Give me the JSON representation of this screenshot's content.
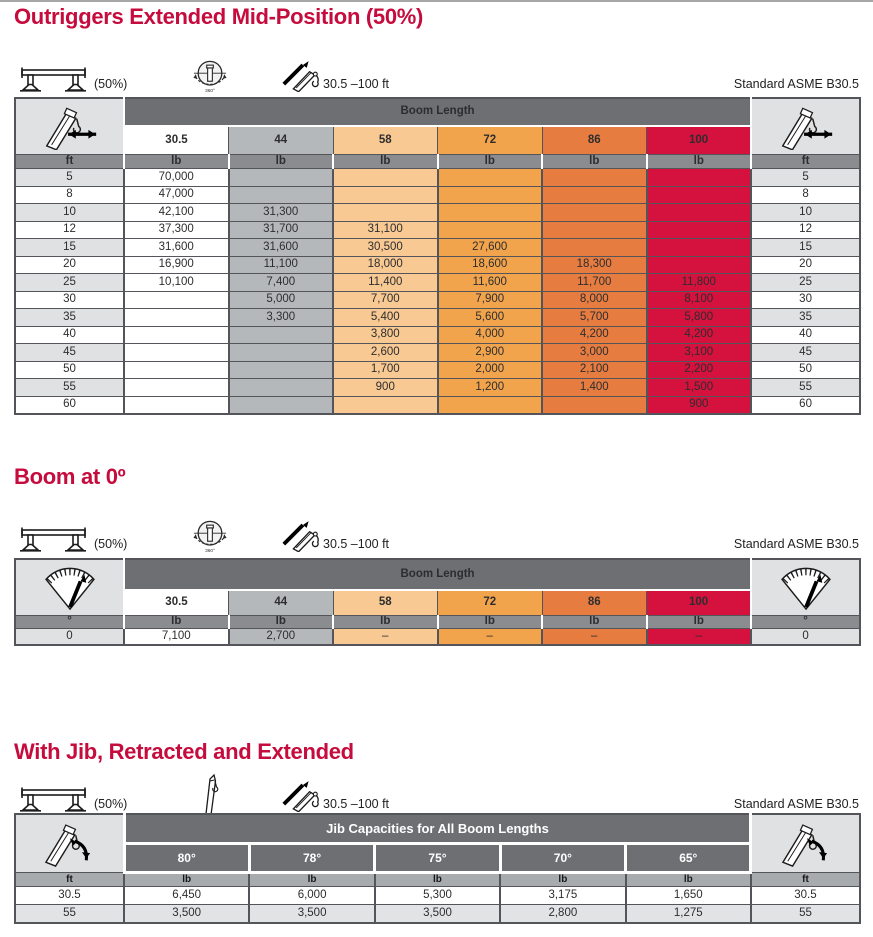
{
  "page": {
    "standard_label": "Standard ASME B30.5"
  },
  "colors": {
    "title_crimson": "#c60b3d",
    "banner_gray": "#6d6f72",
    "unit_bar_gray": "#8a8c8f",
    "corner_light_gray": "#e0e1e3",
    "column_44_gray": "#b5b8ba",
    "column_58_orange": "#f8c992",
    "column_72_orange": "#f2a44c",
    "column_86_orange": "#e77c40",
    "column_100_red": "#d5113d",
    "jib_unit_gray": "#a8abae",
    "jib_alt_row": "#e2e3e5"
  },
  "sections": [
    {
      "title": "Outriggers Extended Mid-Position (50%)",
      "icon_row": {
        "outrigger_label": "(50%)",
        "boom_range_label": "30.5 –100 ft",
        "standard_label": "Standard ASME B30.5"
      },
      "table": {
        "banner": "Boom Length",
        "left_unit": "ft",
        "right_unit": "ft",
        "data_unit": "lb",
        "columns": [
          "30.5",
          "44",
          "58",
          "72",
          "86",
          "100"
        ],
        "rows": [
          {
            "label": "5",
            "values": [
              "70,000",
              "",
              "",
              "",
              "",
              ""
            ]
          },
          {
            "label": "8",
            "values": [
              "47,000",
              "",
              "",
              "",
              "",
              ""
            ]
          },
          {
            "label": "10",
            "values": [
              "42,100",
              "31,300",
              "",
              "",
              "",
              ""
            ]
          },
          {
            "label": "12",
            "values": [
              "37,300",
              "31,700",
              "31,100",
              "",
              "",
              ""
            ]
          },
          {
            "label": "15",
            "values": [
              "31,600",
              "31,600",
              "30,500",
              "27,600",
              "",
              ""
            ]
          },
          {
            "label": "20",
            "values": [
              "16,900",
              "11,100",
              "18,000",
              "18,600",
              "18,300",
              ""
            ]
          },
          {
            "label": "25",
            "values": [
              "10,100",
              "7,400",
              "11,400",
              "11,600",
              "11,700",
              "11,800"
            ]
          },
          {
            "label": "30",
            "values": [
              "",
              "5,000",
              "7,700",
              "7,900",
              "8,000",
              "8,100"
            ]
          },
          {
            "label": "35",
            "values": [
              "",
              "3,300",
              "5,400",
              "5,600",
              "5,700",
              "5,800"
            ]
          },
          {
            "label": "40",
            "values": [
              "",
              "",
              "3,800",
              "4,000",
              "4,200",
              "4,200"
            ]
          },
          {
            "label": "45",
            "values": [
              "",
              "",
              "2,600",
              "2,900",
              "3,000",
              "3,100"
            ]
          },
          {
            "label": "50",
            "values": [
              "",
              "",
              "1,700",
              "2,000",
              "2,100",
              "2,200"
            ]
          },
          {
            "label": "55",
            "values": [
              "",
              "",
              "900",
              "1,200",
              "1,400",
              "1,500"
            ]
          },
          {
            "label": "60",
            "values": [
              "",
              "",
              "",
              "",
              "",
              "900"
            ]
          }
        ]
      }
    },
    {
      "title": "Boom at 0º",
      "icon_row": {
        "outrigger_label": "(50%)",
        "boom_range_label": "30.5 –100 ft",
        "standard_label": "Standard ASME B30.5"
      },
      "table": {
        "banner": "Boom Length",
        "left_unit": "°",
        "right_unit": "°",
        "data_unit": "lb",
        "columns": [
          "30.5",
          "44",
          "58",
          "72",
          "86",
          "100"
        ],
        "rows": [
          {
            "label": "0",
            "values": [
              "7,100",
              "2,700",
              "–",
              "–",
              "–",
              "–"
            ]
          }
        ]
      }
    },
    {
      "title": "With Jib, Retracted and Extended",
      "icon_row": {
        "outrigger_label": "(50%)",
        "boom_range_label": "30.5 –100 ft",
        "standard_label": "Standard ASME B30.5"
      },
      "table": {
        "banner": "Jib Capacities for All Boom Lengths",
        "left_unit": "ft",
        "right_unit": "ft",
        "data_unit": "lb",
        "columns": [
          "80°",
          "78°",
          "75°",
          "70°",
          "65°"
        ],
        "rows": [
          {
            "label": "30.5",
            "values": [
              "6,450",
              "6,000",
              "5,300",
              "3,175",
              "1,650"
            ]
          },
          {
            "label": "55",
            "values": [
              "3,500",
              "3,500",
              "3,500",
              "2,800",
              "1,275"
            ]
          }
        ]
      }
    }
  ]
}
